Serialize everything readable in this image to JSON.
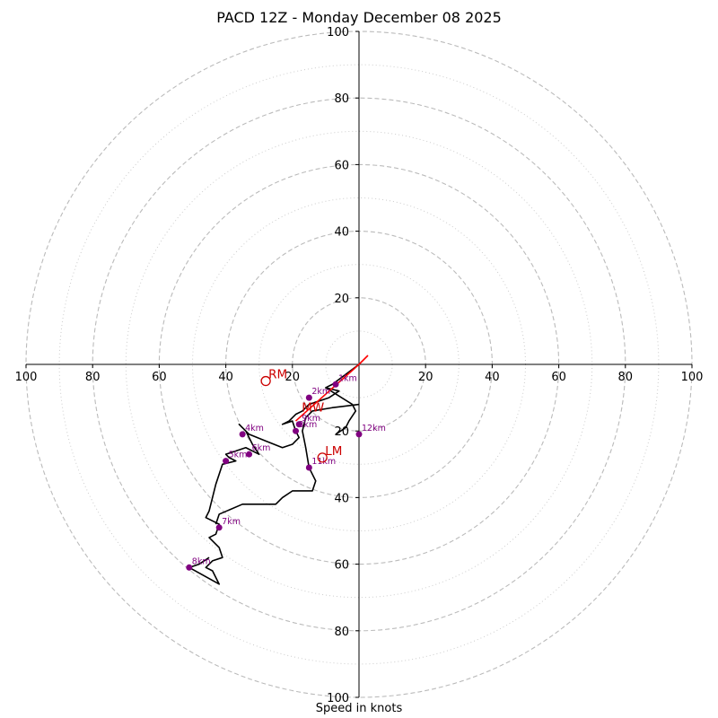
{
  "chart_data": {
    "type": "hodograph",
    "title": "PACD 12Z - Monday December 08 2025",
    "xlabel": "Speed in knots",
    "xlim": [
      -100,
      100
    ],
    "ylim": [
      -100,
      100
    ],
    "x_ticks": [
      -100,
      -80,
      -60,
      -40,
      -20,
      20,
      40,
      60,
      80,
      100
    ],
    "x_tick_labels": [
      "100",
      "80",
      "60",
      "40",
      "20",
      "20",
      "40",
      "60",
      "80",
      "100"
    ],
    "y_ticks": [
      100,
      80,
      60,
      40,
      20,
      -20,
      -40,
      -60,
      -80,
      -100
    ],
    "y_tick_labels": [
      "100",
      "80",
      "60",
      "40",
      "20",
      "20",
      "40",
      "60",
      "80",
      "100"
    ],
    "rings_dashed": [
      20,
      40,
      60,
      80,
      100
    ],
    "rings_dotted": [
      10,
      30,
      50,
      70,
      90
    ],
    "colors": {
      "trace": "#000000",
      "marker": "#800080",
      "marker_label": "#800080",
      "storm_motion": "#cc0000",
      "shear_vector": "#ff0000",
      "grid": "#bbbbbb"
    },
    "trace": [
      [
        0,
        0
      ],
      [
        -4,
        -3
      ],
      [
        -8,
        -6
      ],
      [
        -10,
        -7
      ],
      [
        -6,
        -8
      ],
      [
        -9,
        -10
      ],
      [
        -12,
        -11
      ],
      [
        -15,
        -12
      ],
      [
        -17,
        -14
      ],
      [
        -19,
        -15
      ],
      [
        -21,
        -17
      ],
      [
        -23,
        -18
      ],
      [
        -20,
        -17
      ],
      [
        -19,
        -20
      ],
      [
        -18,
        -22
      ],
      [
        -20,
        -24
      ],
      [
        -23,
        -25
      ],
      [
        -28,
        -23
      ],
      [
        -33,
        -21
      ],
      [
        -36,
        -18
      ],
      [
        -34,
        -20
      ],
      [
        -32,
        -24
      ],
      [
        -30,
        -27
      ],
      [
        -34,
        -25
      ],
      [
        -37,
        -26
      ],
      [
        -40,
        -27
      ],
      [
        -39,
        -28
      ],
      [
        -37,
        -29
      ],
      [
        -41,
        -30
      ],
      [
        -43,
        -36
      ],
      [
        -45,
        -44
      ],
      [
        -46,
        -46
      ],
      [
        -42,
        -48
      ],
      [
        -43,
        -51
      ],
      [
        -45,
        -52
      ],
      [
        -42,
        -55
      ],
      [
        -41,
        -58
      ],
      [
        -44,
        -59
      ],
      [
        -46,
        -61
      ],
      [
        -44,
        -62
      ],
      [
        -42,
        -66
      ],
      [
        -51,
        -61
      ],
      [
        -48,
        -60
      ],
      [
        -45,
        -58
      ]
    ],
    "segment_connect": [
      [
        -10,
        -7
      ],
      [
        -2,
        -12
      ],
      [
        -1,
        -14
      ],
      [
        -3,
        -17
      ],
      [
        -4,
        -19
      ],
      [
        -7,
        -21
      ]
    ],
    "trace_b": [
      [
        0,
        -12
      ],
      [
        -8,
        -13
      ],
      [
        -14,
        -14
      ],
      [
        -16,
        -16
      ],
      [
        -17,
        -20
      ],
      [
        -16,
        -25
      ],
      [
        -15,
        -31
      ],
      [
        -14,
        -33
      ],
      [
        -13,
        -35
      ],
      [
        -14,
        -38
      ],
      [
        -20,
        -38
      ],
      [
        -23,
        -40
      ],
      [
        -25,
        -42
      ],
      [
        -35,
        -42
      ],
      [
        -42,
        -45
      ],
      [
        -43,
        -48
      ]
    ],
    "markers": [
      {
        "label": "1km",
        "u": -7,
        "v": -6
      },
      {
        "label": "2km",
        "u": -15,
        "v": -10
      },
      {
        "label": "3km",
        "u": -19,
        "v": -20
      },
      {
        "label": "4km",
        "u": -35,
        "v": -21
      },
      {
        "label": "5km",
        "u": -40,
        "v": -29
      },
      {
        "label": "6km",
        "u": -33,
        "v": -27
      },
      {
        "label": "7km",
        "u": -42,
        "v": -49
      },
      {
        "label": "8km",
        "u": -51,
        "v": -61
      },
      {
        "label": "9km",
        "u": -18,
        "v": -18
      },
      {
        "label": "11km",
        "u": -15,
        "v": -31
      },
      {
        "label": "12km",
        "u": 0,
        "v": -21
      }
    ],
    "storm_motions": [
      {
        "label": "RM",
        "u": -28,
        "v": -5
      },
      {
        "label": "LM",
        "u": -11,
        "v": -28
      },
      {
        "label": "MW",
        "u": -18,
        "v": -15
      }
    ],
    "shear_vector": {
      "from": [
        0,
        0
      ],
      "to": [
        -19,
        -17
      ]
    }
  }
}
